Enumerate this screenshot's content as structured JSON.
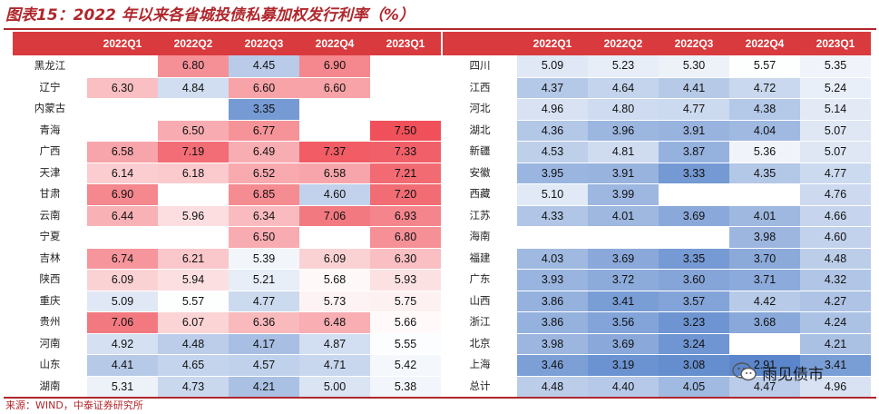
{
  "title": "图表15：2022 年以来各省城投债私募加权发行利率（%）",
  "source": "来源：WIND，中泰证券研究所",
  "watermark": "雨见债市",
  "columns": [
    "2022Q1",
    "2022Q2",
    "2022Q3",
    "2022Q4",
    "2023Q1"
  ],
  "color_scale": {
    "min": 2.9,
    "mid": 5.6,
    "max": 7.5,
    "low_color": "#5a86cb",
    "mid_color": "#ffffff",
    "high_color": "#f0505a"
  },
  "left_rows": [
    {
      "province": "黑龙江",
      "values": [
        "",
        "6.80",
        "4.45",
        "6.90",
        ""
      ]
    },
    {
      "province": "辽宁",
      "values": [
        "6.30",
        "4.84",
        "6.60",
        "6.60",
        ""
      ]
    },
    {
      "province": "内蒙古",
      "values": [
        "",
        "",
        "3.35",
        "",
        ""
      ]
    },
    {
      "province": "青海",
      "values": [
        "",
        "6.50",
        "6.77",
        "",
        "7.50"
      ]
    },
    {
      "province": "广西",
      "values": [
        "6.58",
        "7.19",
        "6.49",
        "7.37",
        "7.33"
      ]
    },
    {
      "province": "天津",
      "values": [
        "6.14",
        "6.18",
        "6.52",
        "6.58",
        "7.21"
      ]
    },
    {
      "province": "甘肃",
      "values": [
        "6.90",
        "",
        "6.85",
        "4.60",
        "7.20"
      ]
    },
    {
      "province": "云南",
      "values": [
        "6.44",
        "5.96",
        "6.34",
        "7.06",
        "6.93"
      ]
    },
    {
      "province": "宁夏",
      "values": [
        "",
        "",
        "6.50",
        "",
        "6.80"
      ]
    },
    {
      "province": "吉林",
      "values": [
        "6.74",
        "6.21",
        "5.39",
        "6.09",
        "6.30"
      ]
    },
    {
      "province": "陕西",
      "values": [
        "6.09",
        "5.94",
        "5.21",
        "5.68",
        "5.93"
      ]
    },
    {
      "province": "重庆",
      "values": [
        "5.09",
        "5.57",
        "4.77",
        "5.73",
        "5.75"
      ]
    },
    {
      "province": "贵州",
      "values": [
        "7.06",
        "6.07",
        "6.36",
        "6.48",
        "5.66"
      ]
    },
    {
      "province": "河南",
      "values": [
        "4.92",
        "4.48",
        "4.17",
        "4.87",
        "5.55"
      ]
    },
    {
      "province": "山东",
      "values": [
        "4.41",
        "4.65",
        "4.57",
        "4.71",
        "5.42"
      ]
    },
    {
      "province": "湖南",
      "values": [
        "5.31",
        "4.73",
        "4.21",
        "5.00",
        "5.38"
      ]
    }
  ],
  "right_rows": [
    {
      "province": "四川",
      "values": [
        "5.09",
        "5.23",
        "5.30",
        "5.57",
        "5.35"
      ]
    },
    {
      "province": "江西",
      "values": [
        "4.37",
        "4.64",
        "4.41",
        "4.72",
        "5.24"
      ]
    },
    {
      "province": "河北",
      "values": [
        "4.96",
        "4.80",
        "4.77",
        "4.38",
        "5.14"
      ]
    },
    {
      "province": "湖北",
      "values": [
        "4.36",
        "3.96",
        "3.91",
        "4.04",
        "5.07"
      ]
    },
    {
      "province": "新疆",
      "values": [
        "4.53",
        "4.81",
        "3.87",
        "5.36",
        "5.07"
      ]
    },
    {
      "province": "安徽",
      "values": [
        "3.95",
        "3.91",
        "3.33",
        "4.35",
        "4.77"
      ]
    },
    {
      "province": "西藏",
      "values": [
        "5.10",
        "3.99",
        "",
        "",
        "4.76"
      ]
    },
    {
      "province": "江苏",
      "values": [
        "4.33",
        "4.01",
        "3.69",
        "4.01",
        "4.66"
      ]
    },
    {
      "province": "海南",
      "values": [
        "",
        "",
        "",
        "3.98",
        "4.60"
      ]
    },
    {
      "province": "福建",
      "values": [
        "4.03",
        "3.69",
        "3.35",
        "3.70",
        "4.48"
      ]
    },
    {
      "province": "广东",
      "values": [
        "3.93",
        "3.72",
        "3.60",
        "3.71",
        "4.32"
      ]
    },
    {
      "province": "山西",
      "values": [
        "3.86",
        "3.41",
        "3.57",
        "4.42",
        "4.27"
      ]
    },
    {
      "province": "浙江",
      "values": [
        "3.86",
        "3.56",
        "3.23",
        "3.68",
        "4.24"
      ]
    },
    {
      "province": "北京",
      "values": [
        "3.98",
        "3.69",
        "3.24",
        "",
        "4.21"
      ]
    },
    {
      "province": "上海",
      "values": [
        "3.46",
        "3.19",
        "3.08",
        "2.91",
        "3.41"
      ]
    },
    {
      "province": "总计",
      "values": [
        "4.48",
        "4.40",
        "4.05",
        "4.47",
        "4.96"
      ]
    }
  ]
}
